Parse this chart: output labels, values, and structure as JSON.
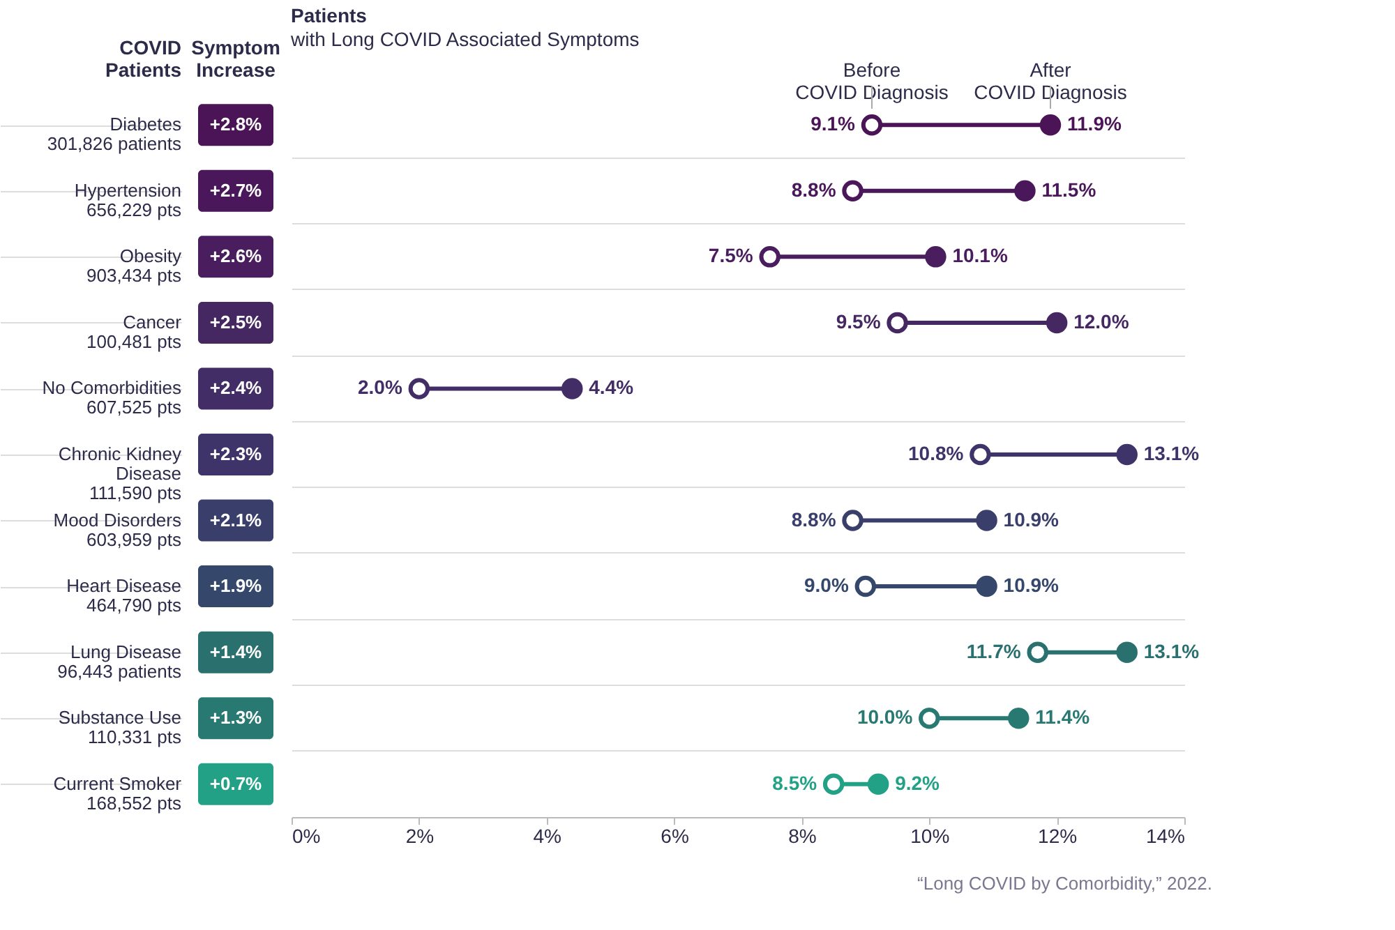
{
  "chart_data": {
    "type": "scatter",
    "orientation": "horizontal",
    "title": "Patients",
    "subtitle": "with Long COVID Associated Symptoms",
    "ylabel": "COVID\nPatients",
    "categories": [
      "Diabetes\n301,826 patients",
      "Hypertension\n656,229 pts",
      "Obesity\n903,434 pts",
      "Cancer\n100,481 pts",
      "No Comorbidities\n607,525 pts",
      "Chronic Kidney\nDisease\n111,590 pts",
      "Mood Disorders\n603,959 pts",
      "Heart Disease\n464,790 pts",
      "Lung Disease\n96,443 patients",
      "Substance Use\n110,331 pts",
      "Current Smoker\n168,552 pts"
    ],
    "colors": [
      "#4a1456",
      "#4a175a",
      "#4a1d5e",
      "#452762",
      "#432d66",
      "#3e3469",
      "#393f6a",
      "#35486b",
      "#2a706f",
      "#277972",
      "#22a186"
    ],
    "series": [
      {
        "name": "Before\nCOVID Diagnosis",
        "marker": "circle",
        "colors": [
          "#4a1456",
          "#4a175a",
          "#4a1d5e",
          "#452762",
          "#432d66",
          "#3e3469",
          "#393f6a",
          "#35486b",
          "#2a706f",
          "#277972",
          "#22a186"
        ],
        "values": [
          9.1,
          8.8,
          7.5,
          9.5,
          2.0,
          10.8,
          8.8,
          9.0,
          11.7,
          10.0,
          8.5
        ],
        "value_labels": [
          "9.1%",
          "8.8%",
          "7.5%",
          "9.5%",
          "2.0%",
          "10.8%",
          "8.8%",
          "9.0%",
          "11.7%",
          "10.0%",
          "8.5%"
        ]
      },
      {
        "name": "After\nCOVID Diagnosis",
        "marker": "circle",
        "colors": [
          "#4a1456",
          "#4a175a",
          "#4a1d5e",
          "#452762",
          "#432d66",
          "#3e3469",
          "#393f6a",
          "#35486b",
          "#2a706f",
          "#277972",
          "#22a186"
        ],
        "values": [
          11.9,
          11.5,
          10.1,
          12.0,
          4.4,
          13.1,
          10.9,
          10.9,
          13.1,
          11.4,
          9.2
        ],
        "value_labels": [
          "11.9%",
          "11.5%",
          "10.1%",
          "12.0%",
          "4.4%",
          "13.1%",
          "10.9%",
          "10.9%",
          "13.1%",
          "11.4%",
          "9.2%"
        ]
      }
    ],
    "xlim": [
      0,
      14
    ],
    "xticks": [
      {
        "value": 0,
        "label": "0%"
      },
      {
        "value": 2,
        "label": "2%"
      },
      {
        "value": 4,
        "label": "4%"
      },
      {
        "value": 6,
        "label": "6%"
      },
      {
        "value": 8,
        "label": "8%"
      },
      {
        "value": 10,
        "label": "10%"
      },
      {
        "value": 12,
        "label": "12%"
      },
      {
        "value": 14,
        "label": "14%"
      }
    ],
    "grid": "y",
    "annotations": [
      "Symptom\nIncrease",
      "+2.8%",
      "+2.7%",
      "+2.6%",
      "+2.5%",
      "+2.4%",
      "+2.3%",
      "+2.1%",
      "+1.9%",
      "+1.4%",
      "+1.3%",
      "+0.7%",
      "“Long COVID by Comorbidity,” 2022."
    ]
  }
}
